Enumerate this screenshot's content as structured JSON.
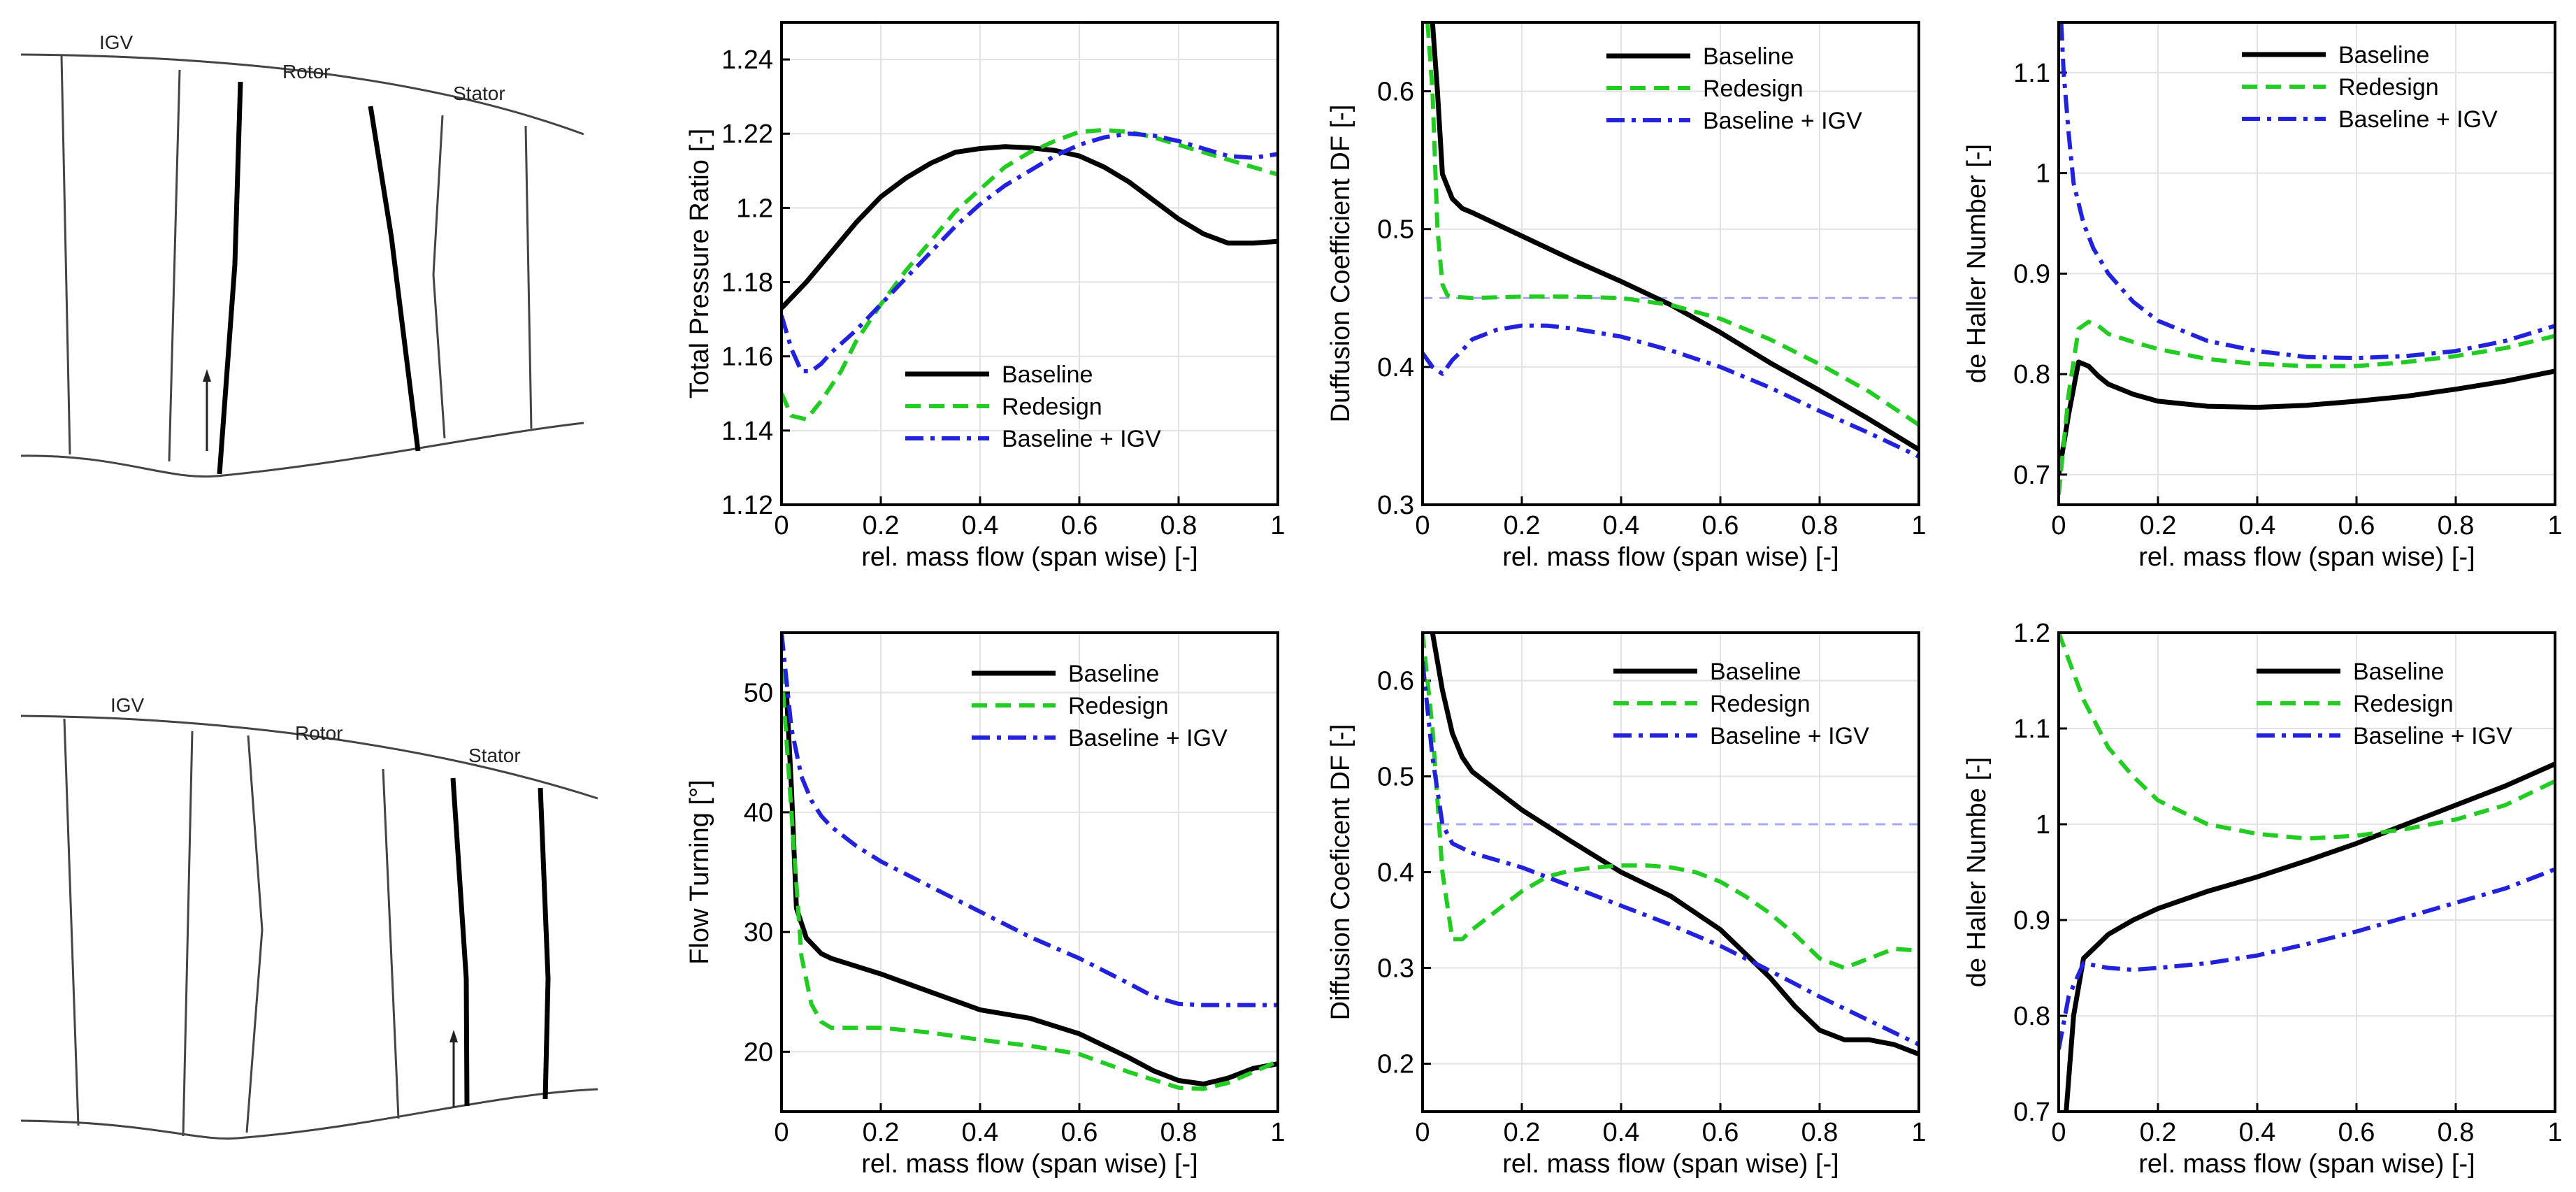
{
  "colors": {
    "baseline": "#000000",
    "redesign": "#22cc22",
    "baseline_igv": "#2222dd",
    "df_limit": "#a9a9f5"
  },
  "sketches": [
    {
      "labels": {
        "igv": "IGV",
        "rotor": "Rotor",
        "stator": "Stator"
      },
      "highlighted_row": "rotor"
    },
    {
      "labels": {
        "igv": "IGV",
        "rotor": "Rotor",
        "stator": "Stator"
      },
      "highlighted_row": "stator"
    }
  ],
  "chart_data": [
    {
      "type": "line",
      "xlabel": "rel. mass flow (span wise) [-]",
      "ylabel": "Total Pressure Ratio [-]",
      "xlim": [
        0,
        1
      ],
      "ylim": [
        1.12,
        1.25
      ],
      "xticks": [
        "0",
        "0.2",
        "0.4",
        "0.6",
        "0.8",
        "1"
      ],
      "yticks": [
        "1.12",
        "1.14",
        "1.16",
        "1.18",
        "1.2",
        "1.22",
        "1.24"
      ],
      "grid": true,
      "legend_position": "lower-center",
      "series": [
        {
          "name": "Baseline",
          "style": "solid",
          "x": [
            0,
            0.05,
            0.1,
            0.15,
            0.2,
            0.25,
            0.3,
            0.35,
            0.4,
            0.45,
            0.5,
            0.55,
            0.6,
            0.65,
            0.7,
            0.75,
            0.8,
            0.85,
            0.9,
            0.95,
            1.0
          ],
          "y": [
            1.173,
            1.18,
            1.188,
            1.196,
            1.203,
            1.208,
            1.212,
            1.215,
            1.216,
            1.2165,
            1.2162,
            1.2155,
            1.214,
            1.211,
            1.207,
            1.202,
            1.197,
            1.193,
            1.1905,
            1.1905,
            1.191
          ]
        },
        {
          "name": "Redesign",
          "style": "dashed",
          "x": [
            0,
            0.02,
            0.05,
            0.08,
            0.12,
            0.15,
            0.2,
            0.25,
            0.3,
            0.35,
            0.4,
            0.45,
            0.5,
            0.55,
            0.6,
            0.65,
            0.7,
            0.75,
            0.8,
            0.85,
            0.9,
            0.95,
            1.0
          ],
          "y": [
            1.15,
            1.144,
            1.143,
            1.148,
            1.156,
            1.164,
            1.174,
            1.183,
            1.191,
            1.199,
            1.205,
            1.211,
            1.215,
            1.218,
            1.2205,
            1.221,
            1.2205,
            1.219,
            1.217,
            1.215,
            1.213,
            1.211,
            1.209
          ]
        },
        {
          "name": "Baseline + IGV",
          "style": "dashdot",
          "x": [
            0,
            0.02,
            0.04,
            0.06,
            0.08,
            0.1,
            0.15,
            0.2,
            0.25,
            0.3,
            0.35,
            0.4,
            0.45,
            0.5,
            0.55,
            0.6,
            0.65,
            0.7,
            0.75,
            0.8,
            0.85,
            0.9,
            0.95,
            1.0
          ],
          "y": [
            1.171,
            1.162,
            1.156,
            1.156,
            1.158,
            1.161,
            1.167,
            1.174,
            1.181,
            1.188,
            1.195,
            1.201,
            1.206,
            1.21,
            1.214,
            1.217,
            1.219,
            1.22,
            1.2195,
            1.218,
            1.216,
            1.214,
            1.2135,
            1.2145
          ]
        }
      ]
    },
    {
      "type": "line",
      "xlabel": "rel. mass flow (span wise) [-]",
      "ylabel": "Duffusion Coefficient DF [-]",
      "xlim": [
        0,
        1
      ],
      "ylim": [
        0.3,
        0.65
      ],
      "xticks": [
        "0",
        "0.2",
        "0.4",
        "0.6",
        "0.8",
        "1"
      ],
      "yticks": [
        "0.3",
        "0.4",
        "0.5",
        "0.6"
      ],
      "grid": true,
      "legend_position": "top-right",
      "limit_line": 0.45,
      "series": [
        {
          "name": "Baseline",
          "style": "solid",
          "x": [
            0.02,
            0.03,
            0.04,
            0.06,
            0.08,
            0.1,
            0.2,
            0.3,
            0.4,
            0.5,
            0.6,
            0.7,
            0.8,
            0.9,
            1.0
          ],
          "y": [
            0.65,
            0.6,
            0.54,
            0.522,
            0.515,
            0.512,
            0.495,
            0.478,
            0.462,
            0.445,
            0.425,
            0.403,
            0.383,
            0.362,
            0.34
          ]
        },
        {
          "name": "Redesign",
          "style": "dashed",
          "x": [
            0.01,
            0.02,
            0.03,
            0.04,
            0.05,
            0.06,
            0.1,
            0.2,
            0.3,
            0.4,
            0.5,
            0.6,
            0.7,
            0.8,
            0.9,
            1.0
          ],
          "y": [
            0.65,
            0.6,
            0.5,
            0.46,
            0.452,
            0.451,
            0.45,
            0.451,
            0.451,
            0.45,
            0.445,
            0.435,
            0.42,
            0.402,
            0.382,
            0.358
          ]
        },
        {
          "name": "Baseline + IGV",
          "style": "dashdot",
          "x": [
            0,
            0.02,
            0.04,
            0.06,
            0.08,
            0.1,
            0.15,
            0.2,
            0.25,
            0.3,
            0.4,
            0.5,
            0.6,
            0.7,
            0.8,
            0.9,
            1.0
          ],
          "y": [
            0.41,
            0.4,
            0.395,
            0.405,
            0.412,
            0.42,
            0.427,
            0.43,
            0.43,
            0.428,
            0.422,
            0.412,
            0.4,
            0.385,
            0.368,
            0.352,
            0.335
          ]
        }
      ]
    },
    {
      "type": "line",
      "xlabel": "rel. mass flow (span wise) [-]",
      "ylabel": "de Haller Number [-]",
      "xlim": [
        0,
        1
      ],
      "ylim": [
        0.67,
        1.15
      ],
      "xticks": [
        "0",
        "0.2",
        "0.4",
        "0.6",
        "0.8",
        "1"
      ],
      "yticks": [
        "0.7",
        "0.8",
        "0.9",
        "1",
        "1.1"
      ],
      "grid": true,
      "legend_position": "top-right",
      "series": [
        {
          "name": "Baseline",
          "style": "solid",
          "x": [
            0,
            0.02,
            0.04,
            0.06,
            0.08,
            0.1,
            0.15,
            0.2,
            0.3,
            0.4,
            0.5,
            0.6,
            0.7,
            0.8,
            0.9,
            1.0
          ],
          "y": [
            0.7,
            0.76,
            0.812,
            0.808,
            0.798,
            0.79,
            0.78,
            0.773,
            0.768,
            0.767,
            0.769,
            0.773,
            0.778,
            0.785,
            0.793,
            0.803
          ]
        },
        {
          "name": "Redesign",
          "style": "dashed",
          "x": [
            0,
            0.02,
            0.04,
            0.06,
            0.08,
            0.1,
            0.15,
            0.2,
            0.3,
            0.4,
            0.5,
            0.6,
            0.7,
            0.8,
            0.9,
            1.0
          ],
          "y": [
            0.68,
            0.78,
            0.845,
            0.852,
            0.848,
            0.84,
            0.832,
            0.825,
            0.815,
            0.81,
            0.808,
            0.808,
            0.812,
            0.818,
            0.826,
            0.838
          ]
        },
        {
          "name": "Baseline + IGV",
          "style": "dashdot",
          "x": [
            0.005,
            0.01,
            0.02,
            0.03,
            0.05,
            0.07,
            0.1,
            0.15,
            0.2,
            0.3,
            0.4,
            0.5,
            0.6,
            0.7,
            0.8,
            0.9,
            1.0
          ],
          "y": [
            1.15,
            1.1,
            1.04,
            0.99,
            0.95,
            0.925,
            0.9,
            0.872,
            0.853,
            0.833,
            0.823,
            0.817,
            0.816,
            0.818,
            0.823,
            0.833,
            0.848
          ]
        }
      ]
    },
    {
      "type": "line",
      "xlabel": "rel. mass flow (span wise) [-]",
      "ylabel": "Flow Turning [°]",
      "xlim": [
        0,
        1
      ],
      "ylim": [
        15,
        55
      ],
      "xticks": [
        "0",
        "0.2",
        "0.4",
        "0.6",
        "0.8",
        "1"
      ],
      "yticks": [
        "20",
        "30",
        "40",
        "50"
      ],
      "grid": true,
      "legend_position": "top-right",
      "series": [
        {
          "name": "Baseline",
          "style": "solid",
          "x": [
            0.01,
            0.02,
            0.03,
            0.05,
            0.08,
            0.1,
            0.2,
            0.3,
            0.4,
            0.5,
            0.6,
            0.7,
            0.75,
            0.8,
            0.85,
            0.9,
            0.95,
            1.0
          ],
          "y": [
            50,
            42,
            32,
            29.5,
            28.2,
            27.8,
            26.5,
            25.0,
            23.5,
            22.8,
            21.5,
            19.5,
            18.4,
            17.6,
            17.3,
            17.8,
            18.6,
            19.0
          ]
        },
        {
          "name": "Redesign",
          "style": "dashed",
          "x": [
            0,
            0.02,
            0.04,
            0.06,
            0.08,
            0.1,
            0.15,
            0.2,
            0.3,
            0.4,
            0.5,
            0.6,
            0.7,
            0.8,
            0.85,
            0.9,
            0.95,
            1.0
          ],
          "y": [
            52,
            40,
            28,
            24,
            22.5,
            22.0,
            22.0,
            22.0,
            21.6,
            21.0,
            20.5,
            19.8,
            18.3,
            17.0,
            16.9,
            17.4,
            18.3,
            19.2
          ]
        },
        {
          "name": "Baseline + IGV",
          "style": "dashdot",
          "x": [
            0,
            0.02,
            0.04,
            0.06,
            0.08,
            0.1,
            0.15,
            0.2,
            0.3,
            0.4,
            0.5,
            0.6,
            0.7,
            0.75,
            0.8,
            0.85,
            0.9,
            0.95,
            1.0
          ],
          "y": [
            55,
            47,
            43,
            41,
            39.7,
            38.8,
            37.2,
            35.9,
            33.8,
            31.7,
            29.6,
            27.8,
            25.7,
            24.6,
            24.0,
            23.9,
            23.9,
            23.9,
            23.9
          ]
        }
      ]
    },
    {
      "type": "line",
      "xlabel": "rel. mass flow (span wise) [-]",
      "ylabel": "Diffusion Coeficent DF [-]",
      "xlim": [
        0,
        1
      ],
      "ylim": [
        0.15,
        0.65
      ],
      "xticks": [
        "0",
        "0.2",
        "0.4",
        "0.6",
        "0.8",
        "1"
      ],
      "yticks": [
        "0.2",
        "0.3",
        "0.4",
        "0.5",
        "0.6"
      ],
      "grid": true,
      "legend_position": "top-right",
      "limit_line": 0.45,
      "series": [
        {
          "name": "Baseline",
          "style": "solid",
          "x": [
            0.02,
            0.04,
            0.06,
            0.08,
            0.1,
            0.15,
            0.2,
            0.3,
            0.4,
            0.5,
            0.6,
            0.7,
            0.75,
            0.8,
            0.85,
            0.9,
            0.95,
            1.0
          ],
          "y": [
            0.65,
            0.59,
            0.545,
            0.52,
            0.505,
            0.485,
            0.465,
            0.432,
            0.4,
            0.375,
            0.34,
            0.29,
            0.26,
            0.235,
            0.225,
            0.225,
            0.22,
            0.21
          ]
        },
        {
          "name": "Redesign",
          "style": "dashed",
          "x": [
            0,
            0.02,
            0.04,
            0.06,
            0.08,
            0.1,
            0.15,
            0.2,
            0.25,
            0.3,
            0.35,
            0.4,
            0.45,
            0.5,
            0.55,
            0.6,
            0.65,
            0.7,
            0.75,
            0.8,
            0.85,
            0.9,
            0.95,
            1.0
          ],
          "y": [
            0.65,
            0.55,
            0.4,
            0.33,
            0.33,
            0.34,
            0.36,
            0.38,
            0.395,
            0.402,
            0.405,
            0.407,
            0.407,
            0.405,
            0.4,
            0.39,
            0.375,
            0.357,
            0.335,
            0.31,
            0.3,
            0.31,
            0.32,
            0.318
          ]
        },
        {
          "name": "Baseline + IGV",
          "style": "dashdot",
          "x": [
            0,
            0.02,
            0.04,
            0.06,
            0.08,
            0.1,
            0.2,
            0.3,
            0.4,
            0.5,
            0.6,
            0.7,
            0.8,
            0.9,
            1.0
          ],
          "y": [
            0.62,
            0.52,
            0.45,
            0.43,
            0.425,
            0.42,
            0.405,
            0.385,
            0.365,
            0.345,
            0.323,
            0.297,
            0.27,
            0.245,
            0.22
          ]
        }
      ]
    },
    {
      "type": "line",
      "xlabel": "rel. mass flow (span wise) [-]",
      "ylabel": "de Haller Numbe [-]",
      "xlim": [
        0,
        1
      ],
      "ylim": [
        0.7,
        1.2
      ],
      "xticks": [
        "0",
        "0.2",
        "0.4",
        "0.6",
        "0.8",
        "1"
      ],
      "yticks": [
        "0.7",
        "0.8",
        "0.9",
        "1",
        "1.1",
        "1.2"
      ],
      "grid": true,
      "legend_position": "top-right",
      "series": [
        {
          "name": "Baseline",
          "style": "solid",
          "x": [
            0.015,
            0.03,
            0.05,
            0.08,
            0.1,
            0.15,
            0.2,
            0.3,
            0.4,
            0.5,
            0.6,
            0.7,
            0.8,
            0.9,
            1.0
          ],
          "y": [
            0.7,
            0.8,
            0.86,
            0.875,
            0.885,
            0.9,
            0.912,
            0.93,
            0.945,
            0.962,
            0.98,
            1.0,
            1.02,
            1.04,
            1.063
          ]
        },
        {
          "name": "Redesign",
          "style": "dashed",
          "x": [
            0,
            0.05,
            0.1,
            0.15,
            0.2,
            0.3,
            0.4,
            0.5,
            0.6,
            0.7,
            0.8,
            0.9,
            1.0
          ],
          "y": [
            1.2,
            1.13,
            1.08,
            1.05,
            1.025,
            1.0,
            0.99,
            0.985,
            0.988,
            0.995,
            1.005,
            1.02,
            1.045
          ]
        },
        {
          "name": "Baseline + IGV",
          "style": "dashdot",
          "x": [
            0,
            0.02,
            0.05,
            0.1,
            0.15,
            0.2,
            0.3,
            0.4,
            0.5,
            0.6,
            0.7,
            0.8,
            0.9,
            1.0
          ],
          "y": [
            0.765,
            0.82,
            0.855,
            0.85,
            0.848,
            0.85,
            0.855,
            0.863,
            0.875,
            0.888,
            0.903,
            0.918,
            0.933,
            0.953
          ]
        }
      ]
    }
  ]
}
